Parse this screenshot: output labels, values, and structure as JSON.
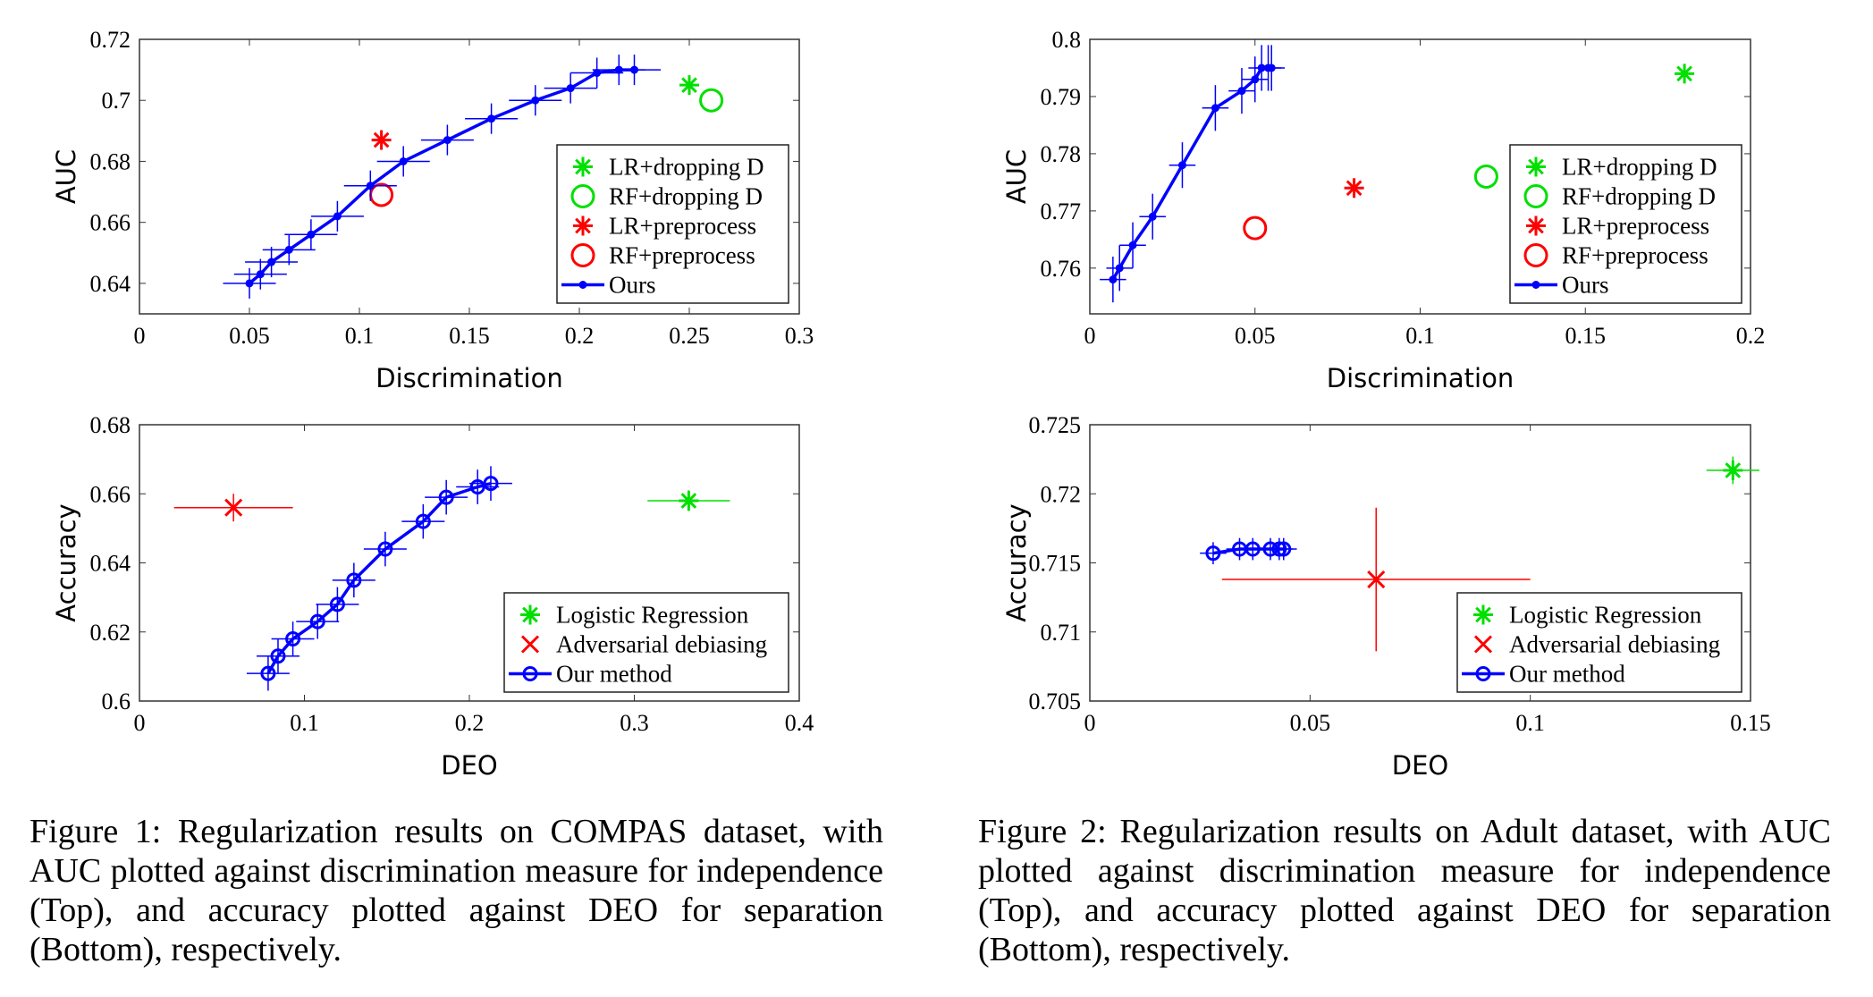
{
  "chart_data": [
    {
      "type": "scatter",
      "id": "compas-auc",
      "xlabel": "Discrimination",
      "ylabel": "AUC",
      "xlim": [
        0,
        0.3
      ],
      "ylim": [
        0.63,
        0.72
      ],
      "xticks": [
        "0",
        "0.05",
        "0.1",
        "0.15",
        "0.2",
        "0.25",
        "0.3"
      ],
      "xtickv": [
        0,
        0.05,
        0.1,
        0.15,
        0.2,
        0.25,
        0.3
      ],
      "yticks": [
        "0.64",
        "0.66",
        "0.68",
        "0.7",
        "0.72"
      ],
      "ytickv": [
        0.64,
        0.66,
        0.68,
        0.7,
        0.72
      ],
      "legend_pos": "bottom-right",
      "series": [
        {
          "name": "LR+dropping D",
          "marker": "star",
          "color": "#00e000",
          "points": [
            [
              0.25,
              0.705
            ]
          ]
        },
        {
          "name": "RF+dropping D",
          "marker": "circle",
          "color": "#00e000",
          "points": [
            [
              0.26,
              0.7
            ]
          ]
        },
        {
          "name": "LR+preprocess",
          "marker": "star",
          "color": "#ff0000",
          "points": [
            [
              0.11,
              0.687
            ]
          ]
        },
        {
          "name": "RF+preprocess",
          "marker": "circle",
          "color": "#ff0000",
          "points": [
            [
              0.11,
              0.669
            ]
          ]
        },
        {
          "name": "Ours",
          "marker": "dot-line",
          "color": "#0000ff",
          "xerr": 0.012,
          "yerr": 0.005,
          "points": [
            [
              0.05,
              0.64
            ],
            [
              0.055,
              0.643
            ],
            [
              0.06,
              0.647
            ],
            [
              0.068,
              0.651
            ],
            [
              0.078,
              0.656
            ],
            [
              0.09,
              0.662
            ],
            [
              0.105,
              0.672
            ],
            [
              0.12,
              0.68
            ],
            [
              0.14,
              0.687
            ],
            [
              0.16,
              0.694
            ],
            [
              0.18,
              0.7
            ],
            [
              0.196,
              0.704
            ],
            [
              0.208,
              0.709
            ],
            [
              0.218,
              0.71
            ],
            [
              0.225,
              0.71
            ]
          ]
        }
      ]
    },
    {
      "type": "scatter",
      "id": "adult-auc",
      "xlabel": "Discrimination",
      "ylabel": "AUC",
      "xlim": [
        0,
        0.2
      ],
      "ylim": [
        0.752,
        0.8
      ],
      "xticks": [
        "0",
        "0.05",
        "0.1",
        "0.15",
        "0.2"
      ],
      "xtickv": [
        0,
        0.05,
        0.1,
        0.15,
        0.2
      ],
      "yticks": [
        "0.76",
        "0.77",
        "0.78",
        "0.79",
        "0.8"
      ],
      "ytickv": [
        0.76,
        0.77,
        0.78,
        0.79,
        0.8
      ],
      "legend_pos": "bottom-right",
      "series": [
        {
          "name": "LR+dropping D",
          "marker": "star",
          "color": "#00e000",
          "points": [
            [
              0.18,
              0.794
            ]
          ]
        },
        {
          "name": "RF+dropping D",
          "marker": "circle",
          "color": "#00e000",
          "points": [
            [
              0.12,
              0.776
            ]
          ]
        },
        {
          "name": "LR+preprocess",
          "marker": "star",
          "color": "#ff0000",
          "points": [
            [
              0.08,
              0.774
            ]
          ]
        },
        {
          "name": "RF+preprocess",
          "marker": "circle",
          "color": "#ff0000",
          "points": [
            [
              0.05,
              0.767
            ]
          ]
        },
        {
          "name": "Ours",
          "marker": "dot-line",
          "color": "#0000ff",
          "xerr": 0.004,
          "yerr": 0.004,
          "points": [
            [
              0.007,
              0.758
            ],
            [
              0.009,
              0.76
            ],
            [
              0.013,
              0.764
            ],
            [
              0.019,
              0.769
            ],
            [
              0.028,
              0.778
            ],
            [
              0.038,
              0.788
            ],
            [
              0.046,
              0.791
            ],
            [
              0.05,
              0.793
            ],
            [
              0.052,
              0.795
            ],
            [
              0.054,
              0.795
            ],
            [
              0.055,
              0.795
            ]
          ]
        }
      ]
    },
    {
      "type": "scatter",
      "id": "compas-acc",
      "xlabel": "DEO",
      "ylabel": "Accuracy",
      "xlim": [
        0,
        0.4
      ],
      "ylim": [
        0.6,
        0.68
      ],
      "xticks": [
        "0",
        "0.1",
        "0.2",
        "0.3",
        "0.4"
      ],
      "xtickv": [
        0,
        0.1,
        0.2,
        0.3,
        0.4
      ],
      "yticks": [
        "0.6",
        "0.62",
        "0.64",
        "0.66",
        "0.68"
      ],
      "ytickv": [
        0.6,
        0.62,
        0.64,
        0.66,
        0.68
      ],
      "legend_pos": "bottom-right",
      "series": [
        {
          "name": "Logistic Regression",
          "marker": "star",
          "color": "#00e000",
          "xerr": 0.025,
          "yerr": 0.003,
          "points": [
            [
              0.333,
              0.658
            ]
          ]
        },
        {
          "name": "Adversarial debiasing",
          "marker": "x",
          "color": "#ff0000",
          "xerr": 0.036,
          "yerr": 0.004,
          "points": [
            [
              0.057,
              0.656
            ]
          ]
        },
        {
          "name": "Our method",
          "marker": "circle-line",
          "color": "#0000ff",
          "xerr": 0.013,
          "yerr": 0.005,
          "points": [
            [
              0.078,
              0.608
            ],
            [
              0.084,
              0.613
            ],
            [
              0.093,
              0.618
            ],
            [
              0.108,
              0.623
            ],
            [
              0.12,
              0.628
            ],
            [
              0.13,
              0.635
            ],
            [
              0.149,
              0.644
            ],
            [
              0.172,
              0.652
            ],
            [
              0.186,
              0.659
            ],
            [
              0.205,
              0.662
            ],
            [
              0.213,
              0.663
            ]
          ]
        }
      ]
    },
    {
      "type": "scatter",
      "id": "adult-acc",
      "xlabel": "DEO",
      "ylabel": "Accuracy",
      "xlim": [
        0,
        0.15
      ],
      "ylim": [
        0.705,
        0.725
      ],
      "xticks": [
        "0",
        "0.05",
        "0.1",
        "0.15"
      ],
      "xtickv": [
        0,
        0.05,
        0.1,
        0.15
      ],
      "yticks": [
        "0.705",
        "0.71",
        "0.715",
        "0.72",
        "0.725"
      ],
      "ytickv": [
        0.705,
        0.71,
        0.715,
        0.72,
        0.725
      ],
      "legend_pos": "bottom-right",
      "series": [
        {
          "name": "Logistic Regression",
          "marker": "star",
          "color": "#00e000",
          "xerr": 0.006,
          "yerr": 0.001,
          "points": [
            [
              0.146,
              0.7217
            ]
          ]
        },
        {
          "name": "Adversarial debiasing",
          "marker": "x",
          "color": "#ff0000",
          "xerr": 0.035,
          "yerr": 0.0052,
          "points": [
            [
              0.065,
              0.7138
            ]
          ]
        },
        {
          "name": "Our method",
          "marker": "circle-line",
          "color": "#0000ff",
          "xerr": 0.003,
          "yerr": 0.0008,
          "points": [
            [
              0.028,
              0.7157
            ],
            [
              0.034,
              0.716
            ],
            [
              0.037,
              0.716
            ],
            [
              0.041,
              0.716
            ],
            [
              0.043,
              0.716
            ],
            [
              0.044,
              0.716
            ]
          ]
        }
      ]
    }
  ],
  "captions": {
    "fig1": "Figure 1: Regularization results on COMPAS dataset, with AUC plotted against discrimination measure for independence (Top), and accuracy plotted against DEO for separation (Bottom), respectively.",
    "fig2": "Figure 2: Regularization results on Adult dataset, with AUC plotted against discrimination measure for independence (Top), and accuracy plotted against DEO for separation (Bottom), respectively."
  }
}
